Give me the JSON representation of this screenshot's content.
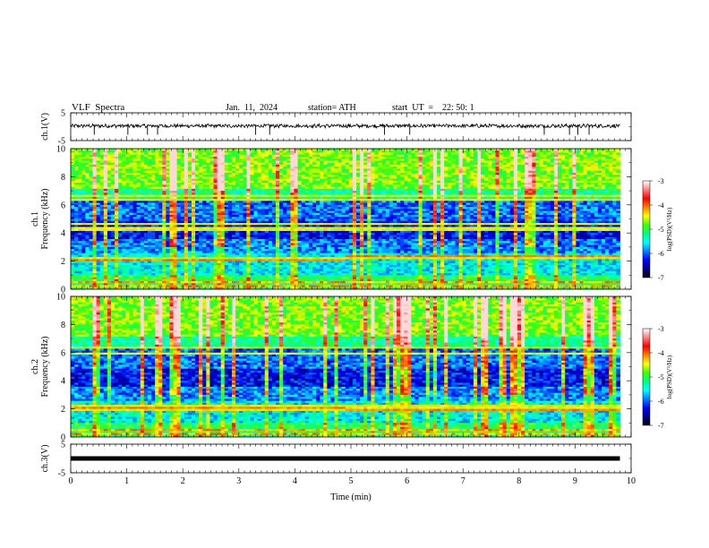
{
  "header": {
    "title": "VLF  Spectra",
    "date": "Jan.  11,  2024",
    "station": "station= ATH",
    "start": "start  UT  =    22: 50: 1"
  },
  "chart_data": {
    "type": "heatmap",
    "x": {
      "label": "Time  (min)",
      "range": [
        0,
        10
      ],
      "ticks": [
        "0",
        "1",
        "2",
        "3",
        "4",
        "5",
        "6",
        "7",
        "8",
        "9",
        "10"
      ],
      "data_end": 9.8
    },
    "panels": [
      {
        "kind": "waveform",
        "ylabel": "ch.1(V)",
        "ylim": [
          -5,
          5
        ],
        "yticks": [
          "5",
          "-5"
        ],
        "baseline": 0.3,
        "noise": 0.6,
        "spike_times": [
          0.42,
          1.02,
          1.37,
          1.55,
          3.3,
          3.55,
          5.6,
          6.05,
          8.45,
          8.9,
          9.05,
          9.25
        ]
      },
      {
        "kind": "spectrogram",
        "ylabel": "ch.1\nFrequency  (kHz)",
        "ylim": [
          0,
          10
        ],
        "yticks": [
          "10",
          "8",
          "6",
          "4",
          "2",
          "0"
        ],
        "colorbar": {
          "label": "log(PSD)(V²/Hz)",
          "range": [
            -7,
            -3
          ],
          "ticks": [
            "-3",
            "-4",
            "-5",
            "-6",
            "-7"
          ]
        },
        "lines_khz": [
          2.2,
          4.3,
          4.6,
          6.6,
          6.4
        ],
        "shift_band": {
          "from_khz": 2.1,
          "to_khz": 2.35,
          "switch_min": 4.9
        }
      },
      {
        "kind": "spectrogram",
        "ylabel": "ch.2\nFrequency  (kHz)",
        "ylim": [
          0,
          10
        ],
        "yticks": [
          "10",
          "8",
          "6",
          "4",
          "2",
          "0"
        ],
        "colorbar": {
          "label": "log(PSD)(V²/Hz)",
          "range": [
            -7,
            -3
          ],
          "ticks": [
            "-3",
            "-4",
            "-5",
            "-6",
            "-7"
          ]
        },
        "lines_khz": [
          2.0,
          2.2,
          6.4,
          5.9
        ],
        "shift_band": {
          "from_khz": 2.05,
          "to_khz": 1.9,
          "switch_min": 4.9
        }
      },
      {
        "kind": "waveform",
        "ylabel": "ch.3(V)",
        "ylim": [
          -5,
          5
        ],
        "yticks": [
          "5",
          "-5"
        ],
        "baseline": 0.0,
        "noise": 0.0,
        "thick_line": true
      }
    ],
    "colormap": [
      "#000000",
      "#00008b",
      "#0000ff",
      "#0080ff",
      "#00ffff",
      "#00ff80",
      "#40ff00",
      "#ffff00",
      "#ff8000",
      "#ff0000",
      "#ff8080",
      "#ffffff"
    ]
  }
}
